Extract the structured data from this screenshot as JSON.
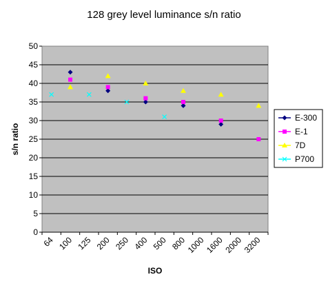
{
  "chart_data": {
    "type": "scatter",
    "title": "128 grey level luminance s/n ratio",
    "xlabel": "ISO",
    "ylabel": "s/n ratio",
    "categories": [
      "64",
      "100",
      "125",
      "200",
      "250",
      "400",
      "500",
      "800",
      "1000",
      "1600",
      "2000",
      "3200"
    ],
    "ylim": [
      0,
      50
    ],
    "ytick_step": 5,
    "yticks": [
      "0",
      "5",
      "10",
      "15",
      "20",
      "25",
      "30",
      "35",
      "40",
      "45",
      "50"
    ],
    "grid": true,
    "legend": "right",
    "series": [
      {
        "name": "E-300",
        "marker": "diamond",
        "color": "#000080",
        "points": [
          {
            "x": "100",
            "y": 43
          },
          {
            "x": "200",
            "y": 38
          },
          {
            "x": "400",
            "y": 35
          },
          {
            "x": "800",
            "y": 34
          },
          {
            "x": "1600",
            "y": 29
          }
        ]
      },
      {
        "name": "E-1",
        "marker": "square",
        "color": "#ff00ff",
        "points": [
          {
            "x": "100",
            "y": 41
          },
          {
            "x": "200",
            "y": 39
          },
          {
            "x": "400",
            "y": 36
          },
          {
            "x": "800",
            "y": 35
          },
          {
            "x": "1600",
            "y": 30
          },
          {
            "x": "3200",
            "y": 25
          }
        ]
      },
      {
        "name": "7D",
        "marker": "triangle",
        "color": "#ffff00",
        "points": [
          {
            "x": "100",
            "y": 39
          },
          {
            "x": "200",
            "y": 42
          },
          {
            "x": "400",
            "y": 40
          },
          {
            "x": "800",
            "y": 38
          },
          {
            "x": "1600",
            "y": 37
          },
          {
            "x": "3200",
            "y": 34
          }
        ]
      },
      {
        "name": "P700",
        "marker": "x",
        "color": "#00ffff",
        "points": [
          {
            "x": "64",
            "y": 37
          },
          {
            "x": "125",
            "y": 37
          },
          {
            "x": "250",
            "y": 35
          },
          {
            "x": "500",
            "y": 31
          }
        ]
      }
    ]
  }
}
